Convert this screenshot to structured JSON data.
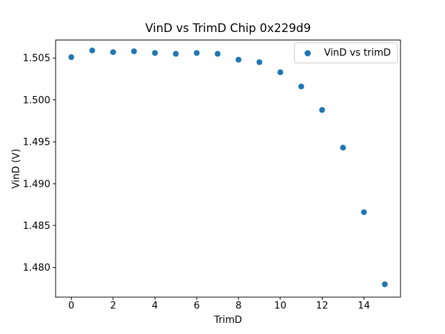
{
  "chart_data": {
    "type": "scatter",
    "title": "VinD vs TrimD Chip 0x229d9",
    "xlabel": "TrimD",
    "ylabel": "VinD (V)",
    "legend_label": "VinD vs trimD",
    "legend_position": "upper right",
    "marker_color": "#1f77b4",
    "axes_edge_color": "#000000",
    "tick_color": "#000000",
    "text_color": "#000000",
    "background_color": "#ffffff",
    "grid": false,
    "x": [
      0,
      1,
      2,
      3,
      4,
      5,
      6,
      7,
      8,
      9,
      10,
      11,
      12,
      13,
      14,
      15
    ],
    "y": [
      1.5051,
      1.5059,
      1.5057,
      1.5058,
      1.5056,
      1.5055,
      1.5056,
      1.5055,
      1.5048,
      1.5045,
      1.5033,
      1.5016,
      1.4988,
      1.4943,
      1.4866,
      1.478
    ],
    "xticks": [
      0,
      2,
      4,
      6,
      8,
      10,
      12,
      14
    ],
    "yticks": [
      1.48,
      1.485,
      1.49,
      1.495,
      1.5,
      1.505
    ],
    "xlim": [
      -0.75,
      15.75
    ],
    "ylim": [
      1.47645,
      1.50714
    ]
  }
}
